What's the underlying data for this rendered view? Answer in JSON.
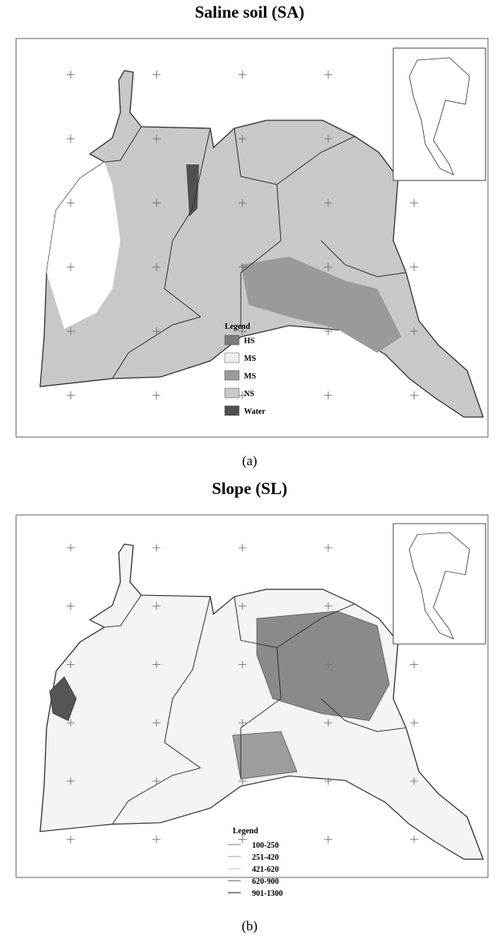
{
  "maps": [
    {
      "title": "Saline soil (SA)",
      "caption": "(a)",
      "legend": {
        "title": "Legend",
        "items": [
          {
            "label": "HS",
            "color": "#7a7a7a"
          },
          {
            "label": "MS",
            "color": "#efefef"
          },
          {
            "label": "MS",
            "color": "#9a9a9a"
          },
          {
            "label": "NS",
            "color": "#c9c9c9"
          },
          {
            "label": "Water",
            "color": "#505050"
          }
        ]
      }
    },
    {
      "title": "Slope (SL)",
      "caption": "(b)",
      "legend": {
        "title": "Legend",
        "items": [
          {
            "label": "100-250",
            "color": "#bdbdbd"
          },
          {
            "label": "251-420",
            "color": "#cfcfcf"
          },
          {
            "label": "421-620",
            "color": "#dedede"
          },
          {
            "label": "620-900",
            "color": "#b0b0b0"
          },
          {
            "label": "901-1300",
            "color": "#8d8d8d"
          }
        ]
      }
    }
  ]
}
